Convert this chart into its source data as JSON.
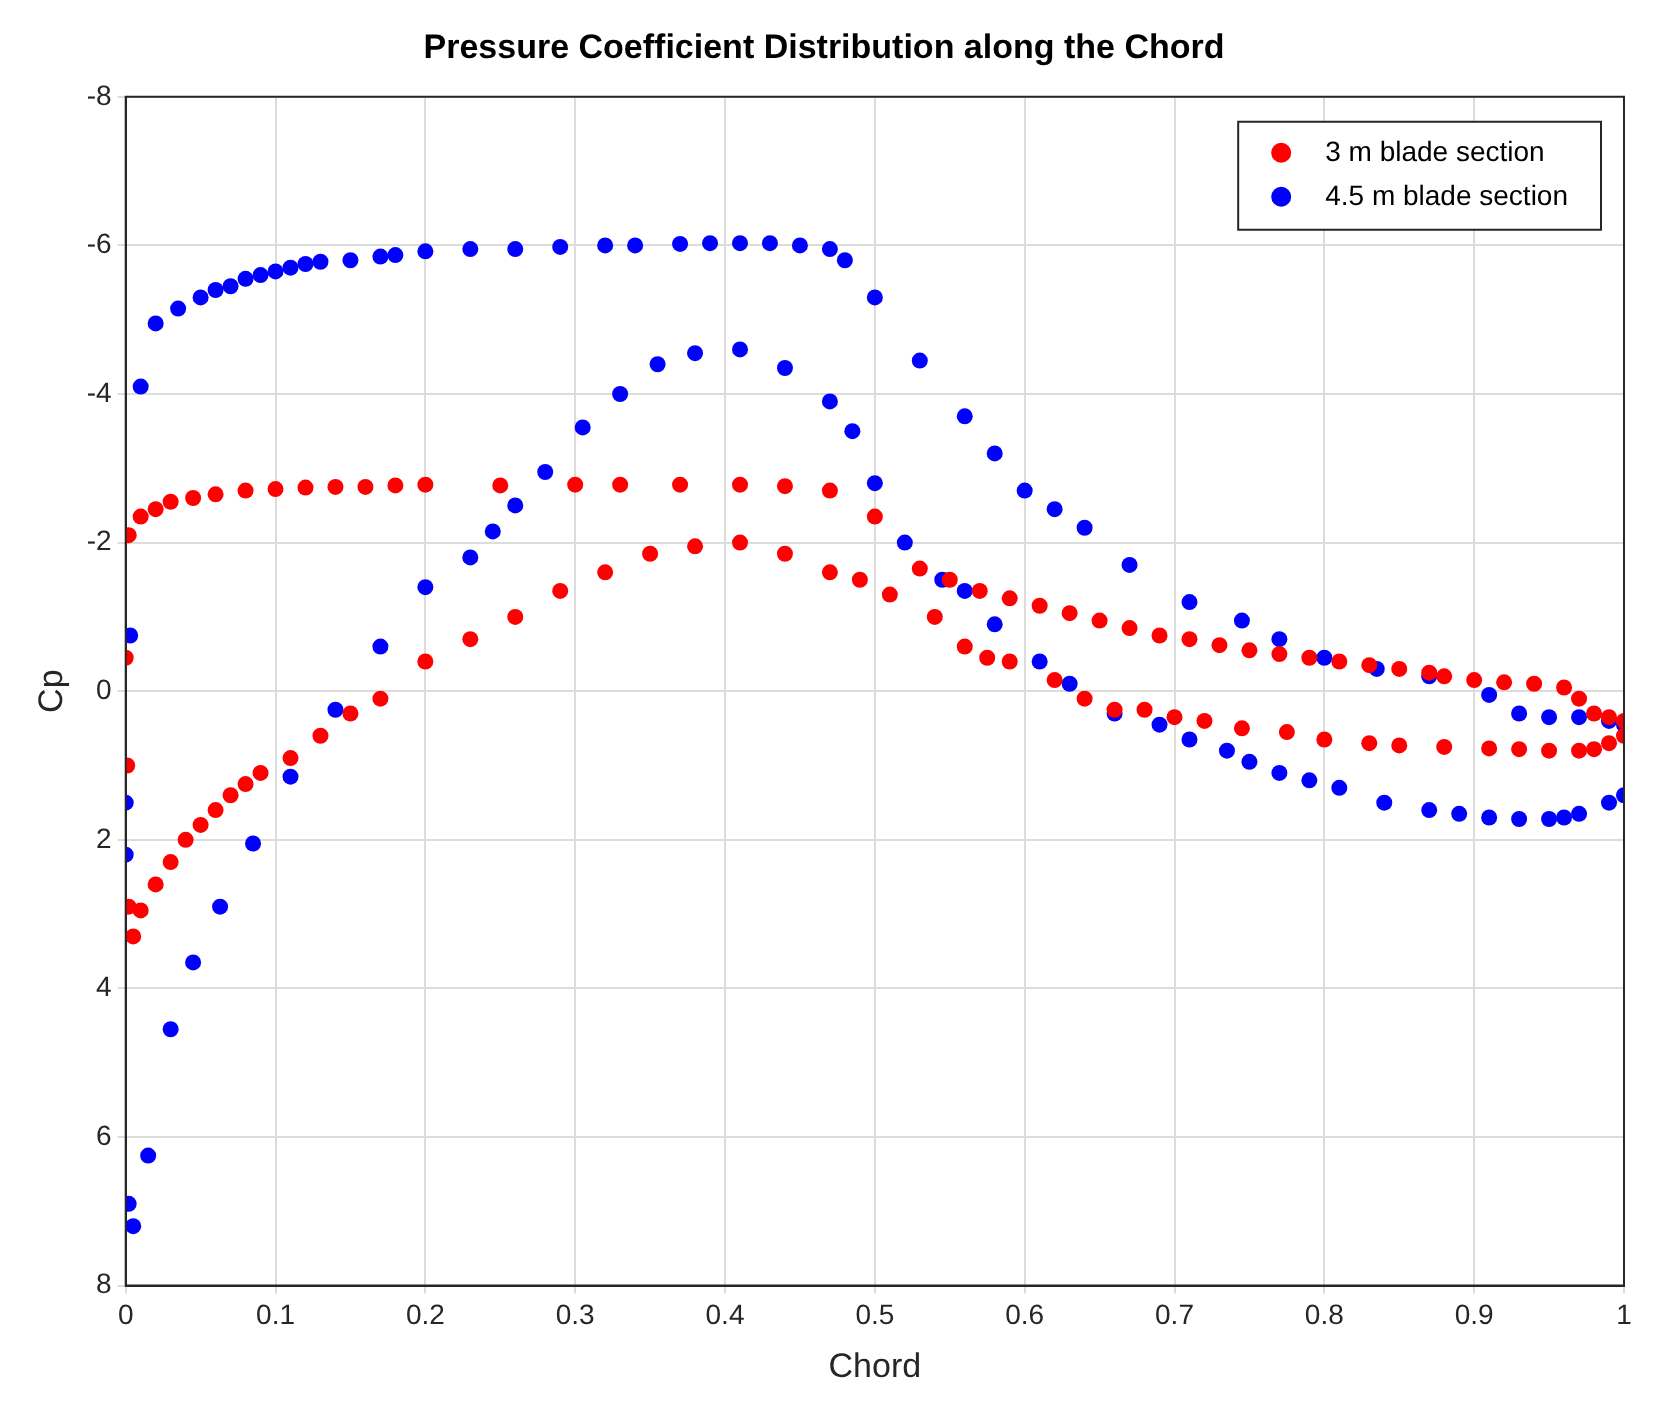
{
  "chart_data": {
    "type": "scatter",
    "title": "Pressure Coefficient Distribution along the Chord",
    "xlabel": "Chord",
    "ylabel": "Cp",
    "series": [
      {
        "name": "3 m blade section",
        "color": "#ff0000",
        "x": [
          0.002,
          0.01,
          0.02,
          0.03,
          0.045,
          0.06,
          0.08,
          0.1,
          0.12,
          0.14,
          0.16,
          0.18,
          0.2,
          0.25,
          0.3,
          0.33,
          0.37,
          0.41,
          0.44,
          0.47,
          0.5,
          0.53,
          0.55,
          0.57,
          0.59,
          0.61,
          0.63,
          0.65,
          0.67,
          0.69,
          0.71,
          0.73,
          0.75,
          0.77,
          0.79,
          0.81,
          0.83,
          0.85,
          0.87,
          0.88,
          0.9,
          0.92,
          0.94,
          0.96,
          0.97,
          0.98,
          0.99,
          1.0,
          0,
          0.001,
          0.002,
          0.005,
          0.01,
          0.02,
          0.03,
          0.04,
          0.05,
          0.06,
          0.07,
          0.08,
          0.09,
          0.11,
          0.13,
          0.15,
          0.17,
          0.2,
          0.23,
          0.26,
          0.29,
          0.32,
          0.35,
          0.38,
          0.41,
          0.44,
          0.47,
          0.49,
          0.51,
          0.54,
          0.56,
          0.575,
          0.59,
          0.62,
          0.64,
          0.66,
          0.68,
          0.7,
          0.72,
          0.745,
          0.775,
          0.8,
          0.83,
          0.85,
          0.88,
          0.91,
          0.93,
          0.95,
          0.97,
          0.98,
          0.99,
          1.0
        ],
        "values": [
          -2.1,
          -2.35,
          -2.45,
          -2.55,
          -2.6,
          -2.65,
          -2.7,
          -2.72,
          -2.74,
          -2.75,
          -2.75,
          -2.77,
          -2.78,
          -2.77,
          -2.78,
          -2.78,
          -2.78,
          -2.78,
          -2.76,
          -2.7,
          -2.35,
          -1.65,
          -1.5,
          -1.35,
          -1.25,
          -1.15,
          -1.05,
          -0.95,
          -0.85,
          -0.75,
          -0.7,
          -0.62,
          -0.55,
          -0.5,
          -0.45,
          -0.4,
          -0.35,
          -0.3,
          -0.25,
          -0.2,
          -0.15,
          -0.12,
          -0.1,
          -0.05,
          0.1,
          0.3,
          0.35,
          0.4,
          -0.45,
          1.0,
          2.9,
          3.3,
          2.95,
          2.6,
          2.3,
          2.0,
          1.8,
          1.6,
          1.4,
          1.25,
          1.1,
          0.9,
          0.6,
          0.3,
          0.1,
          -0.4,
          -0.7,
          -1.0,
          -1.35,
          -1.6,
          -1.85,
          -1.95,
          -2.0,
          -1.85,
          -1.6,
          -1.5,
          -1.3,
          -1.0,
          -0.6,
          -0.45,
          -0.4,
          -0.15,
          0.1,
          0.25,
          0.25,
          0.35,
          0.4,
          0.5,
          0.55,
          0.65,
          0.7,
          0.73,
          0.75,
          0.77,
          0.78,
          0.8,
          0.8,
          0.78,
          0.7,
          0.6
        ]
      },
      {
        "name": "4.5 m blade section",
        "color": "#0000ff",
        "x": [
          0.01,
          0.02,
          0.035,
          0.05,
          0.06,
          0.07,
          0.08,
          0.09,
          0.1,
          0.11,
          0.12,
          0.13,
          0.15,
          0.17,
          0.18,
          0.2,
          0.23,
          0.26,
          0.29,
          0.32,
          0.34,
          0.37,
          0.39,
          0.41,
          0.43,
          0.45,
          0.47,
          0.48,
          0.5,
          0.53,
          0.56,
          0.58,
          0.6,
          0.62,
          0.64,
          0.67,
          0.71,
          0.745,
          0.77,
          0.8,
          0.835,
          0.87,
          0.91,
          0.93,
          0.95,
          0.97,
          0.99,
          1.0,
          0.003,
          0,
          0,
          0.002,
          0.005,
          0.015,
          0.03,
          0.045,
          0.063,
          0.085,
          0.11,
          0.14,
          0.17,
          0.2,
          0.23,
          0.245,
          0.26,
          0.28,
          0.305,
          0.33,
          0.355,
          0.38,
          0.41,
          0.44,
          0.47,
          0.485,
          0.5,
          0.52,
          0.545,
          0.56,
          0.58,
          0.61,
          0.63,
          0.66,
          0.69,
          0.71,
          0.735,
          0.75,
          0.77,
          0.79,
          0.81,
          0.84,
          0.87,
          0.89,
          0.91,
          0.93,
          0.95,
          0.96,
          0.97,
          0.99,
          1.0
        ],
        "values": [
          -4.1,
          -4.95,
          -5.15,
          -5.3,
          -5.4,
          -5.45,
          -5.55,
          -5.6,
          -5.65,
          -5.7,
          -5.75,
          -5.78,
          -5.8,
          -5.85,
          -5.87,
          -5.92,
          -5.95,
          -5.95,
          -5.98,
          -6.0,
          -6.0,
          -6.02,
          -6.03,
          -6.03,
          -6.03,
          -6.0,
          -5.95,
          -5.8,
          -5.3,
          -4.45,
          -3.7,
          -3.2,
          -2.7,
          -2.45,
          -2.2,
          -1.7,
          -1.2,
          -0.95,
          -0.7,
          -0.45,
          -0.3,
          -0.2,
          0.05,
          0.3,
          0.35,
          0.35,
          0.4,
          0.45,
          -0.75,
          1.5,
          2.2,
          6.9,
          7.2,
          6.25,
          4.55,
          3.65,
          2.9,
          2.05,
          1.15,
          0.25,
          -0.6,
          -1.4,
          -1.8,
          -2.15,
          -2.5,
          -2.95,
          -3.55,
          -4.0,
          -4.4,
          -4.55,
          -4.6,
          -4.35,
          -3.9,
          -3.5,
          -2.8,
          -2.0,
          -1.5,
          -1.35,
          -0.9,
          -0.4,
          -0.1,
          0.3,
          0.45,
          0.65,
          0.8,
          0.95,
          1.1,
          1.2,
          1.3,
          1.5,
          1.6,
          1.65,
          1.7,
          1.72,
          1.72,
          1.7,
          1.65,
          1.5,
          1.4
        ]
      }
    ],
    "xlim": [
      0,
      1
    ],
    "xticks": [
      0,
      0.1,
      0.2,
      0.3,
      0.4,
      0.5,
      0.6,
      0.7,
      0.8,
      0.9,
      1
    ],
    "ylim": [
      8,
      -8
    ],
    "yticks": [
      -8,
      -6,
      -4,
      -2,
      0,
      2,
      4,
      6,
      8
    ],
    "grid": true,
    "legend": "top right",
    "marker": "circle"
  }
}
